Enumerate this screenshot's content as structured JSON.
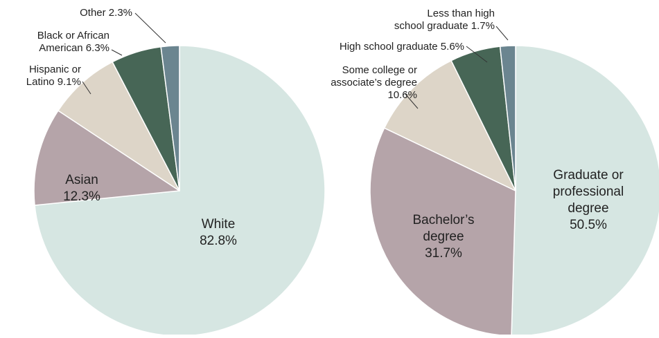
{
  "chart_data": [
    {
      "type": "pie",
      "slices": [
        {
          "name": "White",
          "value": 82.8,
          "label_lines": [
            "White",
            "82.8%"
          ],
          "color": "#d6e6e2",
          "label_style": "inside"
        },
        {
          "name": "Asian",
          "value": 12.3,
          "label_lines": [
            "Asian",
            "12.3%"
          ],
          "color": "#b5a4a9",
          "label_style": "inside"
        },
        {
          "name": "Hispanic or Latino",
          "value": 9.1,
          "label_lines": [
            "Hispanic or",
            "Latino 9.1%"
          ],
          "color": "#ddd5c8",
          "label_style": "callout"
        },
        {
          "name": "Black or African American",
          "value": 6.3,
          "label_lines": [
            "Black or African",
            "American 6.3%"
          ],
          "color": "#476656",
          "label_style": "callout"
        },
        {
          "name": "Other",
          "value": 2.3,
          "label_lines": [
            "Other 2.3%"
          ],
          "color": "#6b8590",
          "label_style": "callout"
        }
      ]
    },
    {
      "type": "pie",
      "slices": [
        {
          "name": "Graduate or professional degree",
          "value": 50.5,
          "label_lines": [
            "Graduate or",
            "professional",
            "degree",
            "50.5%"
          ],
          "color": "#d6e6e2",
          "label_style": "inside"
        },
        {
          "name": "Bachelor's degree",
          "value": 31.7,
          "label_lines": [
            "Bachelor’s",
            "degree",
            "31.7%"
          ],
          "color": "#b5a4a9",
          "label_style": "inside"
        },
        {
          "name": "Some college or associate's degree",
          "value": 10.6,
          "label_lines": [
            "Some college or",
            "associate’s degree",
            "10.6%"
          ],
          "color": "#ddd5c8",
          "label_style": "callout"
        },
        {
          "name": "High school graduate",
          "value": 5.6,
          "label_lines": [
            "High school graduate 5.6%"
          ],
          "color": "#476656",
          "label_style": "callout"
        },
        {
          "name": "Less than high school graduate",
          "value": 1.7,
          "label_lines": [
            "Less than high",
            "school graduate 1.7%"
          ],
          "color": "#6b8590",
          "label_style": "callout"
        }
      ]
    }
  ]
}
